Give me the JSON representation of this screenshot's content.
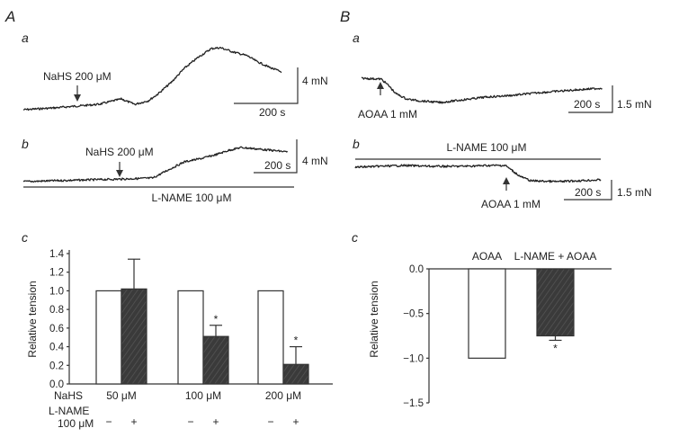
{
  "panels": {
    "A": {
      "label": "A",
      "a": {
        "label": "a",
        "drug": "NaHS 200 μM",
        "scale_y": "4 mN",
        "scale_x": "200 s"
      },
      "b": {
        "label": "b",
        "drug": "NaHS 200 μM",
        "pretreat": "L-NAME 100 μM",
        "scale_y": "4 mN",
        "scale_x": "200 s"
      },
      "c": {
        "label": "c"
      }
    },
    "B": {
      "label": "B",
      "a": {
        "label": "a",
        "drug": "AOAA 1 mM",
        "scale_y": "1.5 mN",
        "scale_x": "200 s"
      },
      "b": {
        "label": "b",
        "drug": "AOAA 1 mM",
        "pretreat": "L-NAME 100 μM",
        "scale_y": "1.5 mN",
        "scale_x": "200 s"
      },
      "c": {
        "label": "c"
      }
    }
  },
  "colors": {
    "control_bar": "#ffffff",
    "lname_bar": "#3a3a3a",
    "axis": "#333333"
  },
  "chart_data": [
    {
      "type": "bar",
      "title": "",
      "ylabel": "Relative tension",
      "ylim": [
        0,
        1.4
      ],
      "yticks": [
        "0.0",
        "0.2",
        "0.4",
        "0.6",
        "0.8",
        "1.0",
        "1.2",
        "1.4"
      ],
      "row_labels": {
        "nahs": "NaHS",
        "lname_1": "L-NAME",
        "lname_2": "100 μM"
      },
      "categories": [
        "50 μM",
        "100 μM",
        "200 μM"
      ],
      "series": [
        {
          "name": "-",
          "values": [
            1.0,
            1.0,
            1.0
          ],
          "errors": [
            0,
            0,
            0
          ]
        },
        {
          "name": "+",
          "values": [
            1.02,
            0.51,
            0.21
          ],
          "errors": [
            0.32,
            0.12,
            0.19
          ],
          "significant": [
            "",
            "*",
            "*"
          ]
        }
      ]
    },
    {
      "type": "bar",
      "ylabel": "Relative tension",
      "ylim": [
        -1.5,
        0
      ],
      "yticks": [
        "0.0",
        "−0.5",
        "−1.0",
        "−1.5"
      ],
      "categories": [
        "AOAA",
        "L-NAME + AOAA"
      ],
      "values": [
        -1.0,
        -0.75
      ],
      "errors": [
        0,
        0.05
      ],
      "significant": [
        "",
        "*"
      ]
    }
  ]
}
